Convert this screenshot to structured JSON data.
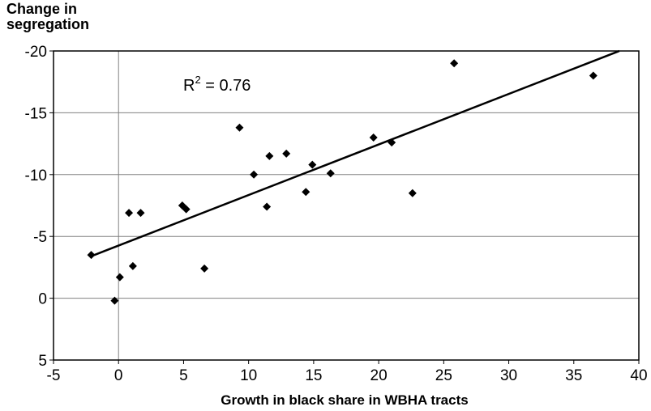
{
  "chart_data": {
    "type": "scatter",
    "ylabel_lines": [
      "Change in",
      "segregation"
    ],
    "xlabel": "Growth in black share in WBHA tracts",
    "annotation": {
      "base": "R",
      "superscript": "2",
      "rest": " = 0.76"
    },
    "xlim": [
      -5,
      40
    ],
    "ylim": [
      5,
      -20
    ],
    "x_ticks": [
      -5,
      0,
      5,
      10,
      15,
      20,
      25,
      30,
      35,
      40
    ],
    "y_ticks": [
      -20,
      -15,
      -10,
      -5,
      0,
      5
    ],
    "x_tick_labels": [
      "-5",
      "0",
      "5",
      "10",
      "15",
      "20",
      "25",
      "30",
      "35",
      "40"
    ],
    "y_tick_labels": [
      "-20",
      "-15",
      "-10",
      "-5",
      "0",
      "5"
    ],
    "grid": {
      "horizontal": true,
      "vertical": false
    },
    "points": [
      {
        "x": -2.1,
        "y": -3.5
      },
      {
        "x": -0.3,
        "y": 0.2
      },
      {
        "x": 0.1,
        "y": -1.7
      },
      {
        "x": 0.8,
        "y": -6.9
      },
      {
        "x": 1.1,
        "y": -2.6
      },
      {
        "x": 1.7,
        "y": -6.9
      },
      {
        "x": 4.9,
        "y": -7.5
      },
      {
        "x": 5.2,
        "y": -7.2
      },
      {
        "x": 6.6,
        "y": -2.4
      },
      {
        "x": 9.3,
        "y": -13.8
      },
      {
        "x": 10.4,
        "y": -10.0
      },
      {
        "x": 11.4,
        "y": -7.4
      },
      {
        "x": 11.6,
        "y": -11.5
      },
      {
        "x": 12.9,
        "y": -11.7
      },
      {
        "x": 14.4,
        "y": -8.6
      },
      {
        "x": 14.9,
        "y": -10.8
      },
      {
        "x": 16.3,
        "y": -10.1
      },
      {
        "x": 19.6,
        "y": -13.0
      },
      {
        "x": 21.0,
        "y": -12.6
      },
      {
        "x": 22.6,
        "y": -8.5
      },
      {
        "x": 25.8,
        "y": -19.0
      },
      {
        "x": 36.5,
        "y": -18.0
      }
    ],
    "fit_line": {
      "x": [
        -2.1,
        38.5
      ],
      "y": [
        -3.4,
        -20.0
      ]
    },
    "colors": {
      "points": "#000000",
      "line": "#000000",
      "grid": "#808080",
      "axis": "#000000"
    }
  }
}
